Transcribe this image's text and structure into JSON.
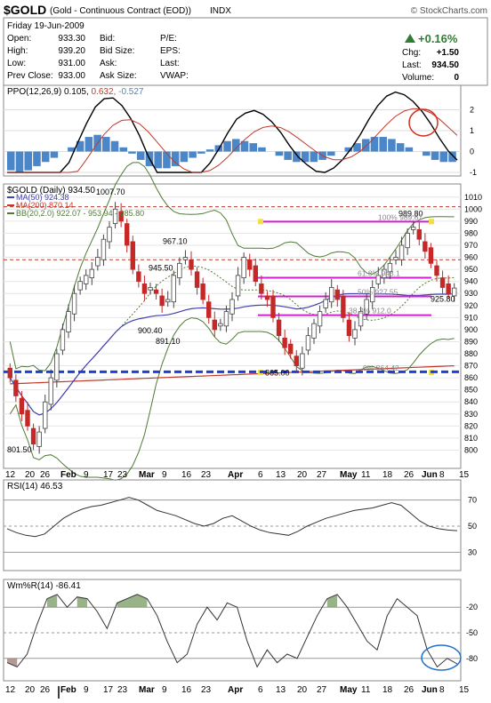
{
  "header": {
    "symbol": "$GOLD",
    "description": "(Gold - Continuous Contract (EOD))",
    "exchange": "INDX",
    "copyright": "© StockCharts.com",
    "date": "Friday  19-Jun-2009",
    "open_label": "Open:",
    "open": "933.30",
    "high_label": "High:",
    "high": "939.20",
    "low_label": "Low:",
    "low": "931.00",
    "prev_close_label": "Prev Close:",
    "prev_close": "933.00",
    "bid_label": "Bid:",
    "bid_size_label": "Bid Size:",
    "ask_label": "Ask:",
    "ask_size_label": "Ask Size:",
    "pe_label": "P/E:",
    "eps_label": "EPS:",
    "last_label_mid": "Last:",
    "vwap_label": "VWAP:",
    "change_pct": "+0.16%",
    "chg_label": "Chg:",
    "chg": "+1.50",
    "last_label": "Last:",
    "last": "934.50",
    "volume_label": "Volume:",
    "volume": "0",
    "up_color": "#2e7d32"
  },
  "chart_data": [
    {
      "type": "histogram",
      "panel": "ppo",
      "legend": "PPO(12,26,9) 0.105, 0.632, -0.527",
      "legend_parts": [
        "PPO(12,26,9)",
        "0.105,",
        "0.632,",
        "-0.527"
      ],
      "ylim": [
        -1,
        3
      ],
      "y_ticks": [
        2,
        1,
        0,
        -1
      ],
      "histogram_color": "#4a86c8",
      "histogram": [
        -0.9,
        -1.0,
        -0.9,
        -0.7,
        -0.5,
        -0.3,
        0.0,
        0.2,
        0.5,
        0.7,
        0.8,
        0.7,
        0.5,
        0.2,
        -0.1,
        -0.4,
        -0.7,
        -0.8,
        -0.8,
        -0.7,
        -0.5,
        -0.3,
        -0.1,
        0.1,
        0.3,
        0.5,
        0.6,
        0.5,
        0.4,
        0.2,
        0.0,
        -0.2,
        -0.4,
        -0.5,
        -0.5,
        -0.5,
        -0.4,
        -0.2,
        0.0,
        0.2,
        0.4,
        0.6,
        0.7,
        0.7,
        0.6,
        0.4,
        0.2,
        0.0,
        -0.2,
        -0.4,
        -0.5,
        -0.5
      ]
    },
    {
      "type": "candlestick",
      "panel": "price",
      "legend_main": "$GOLD (Daily) 934.50",
      "legend_ma50": "MA(50) 924.38",
      "legend_ma200": "MA(200) 870.14",
      "legend_bb": "BB(20,2.0) 922.07 - 953.94 - 985.80",
      "ylim": [
        790,
        1015
      ],
      "y_ticks": [
        1010,
        1000,
        990,
        980,
        970,
        960,
        950,
        940,
        930,
        920,
        910,
        900,
        890,
        880,
        870,
        860,
        850,
        840,
        830,
        820,
        810,
        800
      ],
      "x_tick_labels": [
        "12",
        "20",
        "26",
        "Feb",
        "9",
        "17",
        "23",
        "Mar",
        "9",
        "16",
        "23",
        "Apr",
        "6",
        "13",
        "20",
        "27",
        "May",
        "11",
        "18",
        "26",
        "Jun",
        "8",
        "15"
      ],
      "annotations": [
        "1007.70",
        "967.10",
        "945.50",
        "900.40",
        "891.10",
        "865.00",
        "801.50",
        "989.80",
        "925.80"
      ],
      "fib_labels": [
        "100% 989.67",
        "61.8% 943.1",
        "50% 927.55",
        "38.2% 912.0",
        "0% 864.42"
      ],
      "fib_levels": [
        989.67,
        943.1,
        927.55,
        912.0
      ],
      "support_level": 865,
      "resistance_levels": [
        1002,
        958
      ],
      "colors": {
        "up": "#444444",
        "down": "#c62828",
        "ma50": "#4040b0",
        "ma200": "#c0392b",
        "bb": "#4f7a35",
        "fib": "#d020d0",
        "support": "#1e3fcf"
      },
      "closes": [
        860,
        845,
        830,
        820,
        805,
        815,
        840,
        860,
        880,
        900,
        915,
        930,
        940,
        945,
        950,
        960,
        975,
        985,
        1000,
        990,
        970,
        950,
        940,
        930,
        935,
        930,
        920,
        925,
        945,
        955,
        960,
        950,
        935,
        925,
        910,
        900,
        905,
        915,
        925,
        945,
        960,
        950,
        940,
        930,
        925,
        910,
        895,
        885,
        880,
        870,
        880,
        895,
        905,
        915,
        925,
        935,
        925,
        910,
        895,
        900,
        915,
        925,
        935,
        945,
        950,
        955,
        960,
        970,
        980,
        985,
        975,
        965,
        955,
        945,
        935,
        930,
        934.5
      ]
    },
    {
      "type": "line",
      "panel": "rsi",
      "legend": "RSI(14) 46.53",
      "ylim": [
        20,
        80
      ],
      "y_ticks": [
        70,
        50,
        30
      ],
      "values": [
        48,
        45,
        43,
        42,
        44,
        50,
        56,
        60,
        63,
        65,
        66,
        68,
        70,
        72,
        70,
        66,
        62,
        60,
        58,
        55,
        52,
        50,
        52,
        56,
        58,
        54,
        50,
        47,
        45,
        44,
        43,
        46,
        50,
        53,
        56,
        58,
        60,
        62,
        63,
        64,
        66,
        68,
        66,
        60,
        54,
        50,
        48,
        47,
        46.53
      ]
    },
    {
      "type": "area",
      "panel": "willr",
      "legend": "Wm%R(14) -86.41",
      "ylim": [
        -100,
        0
      ],
      "y_ticks": [
        -20,
        -50,
        -80
      ],
      "values": [
        -85,
        -90,
        -75,
        -40,
        -10,
        -5,
        -20,
        -8,
        -10,
        -25,
        -45,
        -15,
        -10,
        -5,
        -10,
        -30,
        -60,
        -85,
        -75,
        -40,
        -20,
        -35,
        -15,
        -20,
        -60,
        -90,
        -70,
        -85,
        -75,
        -80,
        -55,
        -30,
        -10,
        -5,
        -20,
        -40,
        -60,
        -70,
        -30,
        -10,
        -20,
        -30,
        -70,
        -90,
        -80,
        -86.41
      ]
    }
  ]
}
